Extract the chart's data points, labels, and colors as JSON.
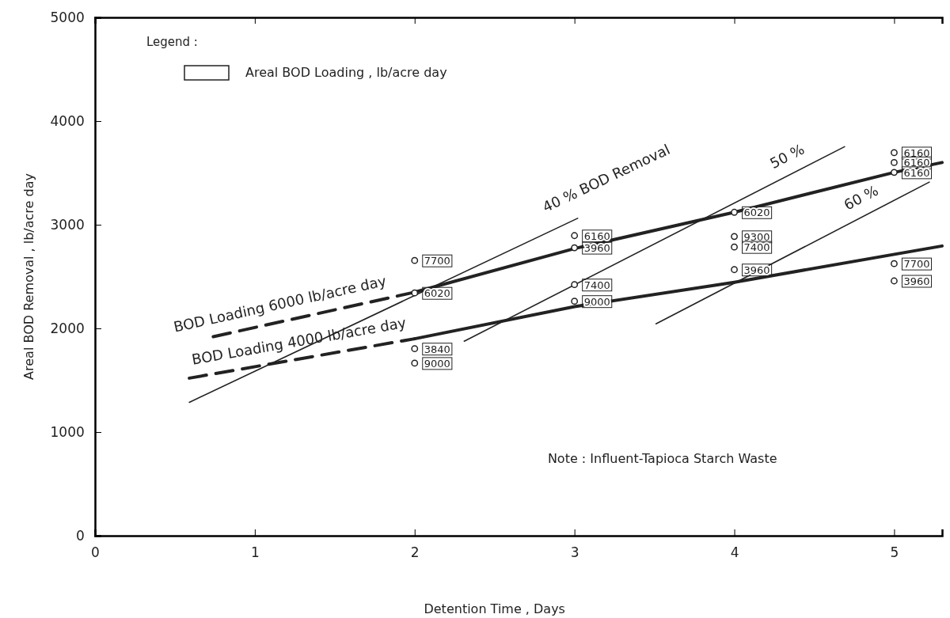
{
  "chart_data": {
    "type": "scatter",
    "xlabel": "Detention Time ,  Days",
    "ylabel": "Areal BOD Removal , lb/acre day",
    "xlim": [
      0,
      5.3
    ],
    "ylim": [
      0,
      5000
    ],
    "xticks": [
      0,
      1,
      2,
      3,
      4,
      5
    ],
    "yticks": [
      0,
      1000,
      2000,
      3000,
      4000,
      5000
    ],
    "grid": false,
    "legend_title": "Legend :",
    "marker": "circle",
    "series": [
      {
        "color": "#222222",
        "x": [
          2,
          2,
          2,
          2,
          3,
          3,
          3,
          3,
          4,
          4,
          4,
          4,
          5,
          5,
          5,
          5,
          5
        ],
        "values": [
          2655,
          2342,
          1804,
          1665,
          2895,
          2778,
          2422,
          2262,
          3120,
          2887,
          2785,
          2567,
          3695,
          3600,
          3505,
          2625,
          2458
        ]
      },
      {
        "type": "line",
        "name": "BOD Loading 6000 lb/acre day",
        "marker": "none",
        "color": "#222222",
        "line_style": "dashed",
        "x": [
          0.74,
          2
        ],
        "values": [
          1920,
          2349
        ]
      },
      {
        "type": "line",
        "marker": "none",
        "color": "#222222",
        "line_style": "solid",
        "x": [
          2,
          3,
          4,
          5,
          5.3
        ],
        "values": [
          2349,
          2770,
          3120,
          3505,
          3600
        ]
      },
      {
        "type": "line",
        "name": "BOD Loading 4000 lb/acre day",
        "marker": "none",
        "color": "#222222",
        "line_style": "dashed",
        "x": [
          0.59,
          2
        ],
        "values": [
          1520,
          1900
        ]
      },
      {
        "type": "line",
        "marker": "none",
        "color": "#222222",
        "line_style": "solid",
        "x": [
          2,
          3,
          4,
          5.3
        ],
        "values": [
          1900,
          2210,
          2445,
          2795
        ]
      },
      {
        "type": "line",
        "name": "40 % BOD Removal",
        "marker": "none",
        "color": "#222222",
        "line_style": "solid",
        "x": [
          0.59,
          3.02
        ],
        "values": [
          1287,
          3062
        ]
      },
      {
        "type": "line",
        "name": "50 %",
        "marker": "none",
        "color": "#222222",
        "line_style": "solid",
        "x": [
          2.31,
          4.69
        ],
        "values": [
          1876,
          3753
        ]
      },
      {
        "type": "line",
        "name": "60 %",
        "marker": "none",
        "color": "#222222",
        "line_style": "solid",
        "x": [
          3.51,
          5.22
        ],
        "values": [
          2044,
          3411
        ]
      }
    ],
    "annotations": [
      {
        "text": "7700",
        "x": 2,
        "y": 2655
      },
      {
        "text": "6020",
        "x": 2,
        "y": 2342
      },
      {
        "text": "3840",
        "x": 2,
        "y": 1804
      },
      {
        "text": "9000",
        "x": 2,
        "y": 1665
      },
      {
        "text": "6160",
        "x": 3,
        "y": 2895
      },
      {
        "text": "3960",
        "x": 3,
        "y": 2778
      },
      {
        "text": "7400",
        "x": 3,
        "y": 2422
      },
      {
        "text": "9000",
        "x": 3,
        "y": 2262
      },
      {
        "text": "6020",
        "x": 4,
        "y": 3120
      },
      {
        "text": "9300",
        "x": 4,
        "y": 2887
      },
      {
        "text": "7400",
        "x": 4,
        "y": 2785
      },
      {
        "text": "3960",
        "x": 4,
        "y": 2567
      },
      {
        "text": "6160",
        "x": 5,
        "y": 3695
      },
      {
        "text": "6160",
        "x": 5,
        "y": 3600
      },
      {
        "text": "6160",
        "x": 5,
        "y": 3505
      },
      {
        "text": "7700",
        "x": 5,
        "y": 2625
      },
      {
        "text": "3960",
        "x": 5,
        "y": 2458
      },
      "Areal BOD Loading , lb/acre day",
      "Note :  Influent-Tapioca Starch Waste"
    ]
  }
}
